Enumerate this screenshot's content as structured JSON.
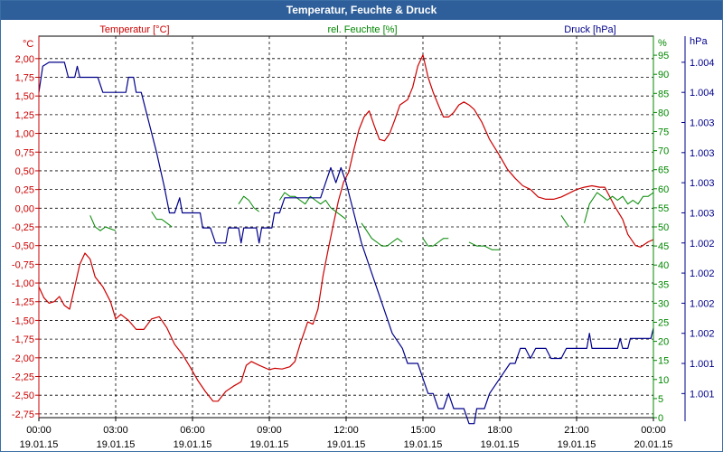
{
  "window": {
    "title": "Temperatur, Feuchte & Druck"
  },
  "chart_data": {
    "type": "line",
    "title": "Temperatur, Feuchte & Druck",
    "x_ticks": [
      {
        "time": "00:00",
        "date": "19.01.15"
      },
      {
        "time": "03:00",
        "date": "19.01.15"
      },
      {
        "time": "06:00",
        "date": "19.01.15"
      },
      {
        "time": "09:00",
        "date": "19.01.15"
      },
      {
        "time": "12:00",
        "date": "19.01.15"
      },
      {
        "time": "15:00",
        "date": "19.01.15"
      },
      {
        "time": "18:00",
        "date": "19.01.15"
      },
      {
        "time": "21:00",
        "date": "19.01.15"
      },
      {
        "time": "00:00",
        "date": "20.01.15"
      }
    ],
    "xlim": [
      0,
      24
    ],
    "axes": {
      "temperature": {
        "label": "Temperatur [°C]",
        "unit": "°C",
        "color": "#cc0000",
        "ylim": [
          -2.8,
          2.3
        ],
        "ticks": [
          2.0,
          1.75,
          1.5,
          1.25,
          1.0,
          0.75,
          0.5,
          0.25,
          0.0,
          -0.25,
          -0.5,
          -0.75,
          -1.0,
          -1.25,
          -1.5,
          -1.75,
          -2.0,
          -2.25,
          -2.5,
          -2.75
        ],
        "tick_labels": [
          "2,00",
          "1,75",
          "1,50",
          "1,25",
          "1,00",
          "0,75",
          "0,50",
          "0,25",
          "0,00",
          "-0,25",
          "-0,50",
          "-0,75",
          "-1,00",
          "-1,25",
          "-1,50",
          "-1,75",
          "-2,00",
          "-2,25",
          "-2,50",
          "-2,75"
        ]
      },
      "humidity": {
        "label": "rel. Feuchte [%]",
        "unit": "%",
        "color": "#008800",
        "ylim": [
          0,
          100
        ],
        "ticks": [
          95,
          90,
          85,
          80,
          75,
          70,
          65,
          60,
          55,
          50,
          45,
          40,
          35,
          30,
          25,
          20,
          15,
          10,
          5,
          0
        ],
        "tick_labels": [
          "95",
          "90",
          "85",
          "80",
          "75",
          "70",
          "65",
          "60",
          "55",
          "50",
          "45",
          "40",
          "35",
          "30",
          "25",
          "20",
          "15",
          "10",
          "5",
          "0"
        ]
      },
      "pressure": {
        "label": "Druck [hPa]",
        "unit": "hPa",
        "color": "#00008b",
        "ylim": [
          1000.5,
          1004.3
        ],
        "tick_values": [
          1004.04,
          1003.74,
          1003.44,
          1003.14,
          1002.84,
          1002.54,
          1002.24,
          1001.94,
          1001.64,
          1001.34,
          1001.04,
          1000.74
        ],
        "tick_labels": [
          "1.004",
          "1.004",
          "1.003",
          "1.003",
          "1.003",
          "1.003",
          "1.002",
          "1.002",
          "1.002",
          "1.002",
          "1.001",
          "1.001"
        ]
      }
    },
    "series": [
      {
        "name": "Temperatur [°C]",
        "axis": "temperature",
        "color": "#cc0000",
        "points": [
          [
            0,
            -1.05
          ],
          [
            0.2,
            -1.2
          ],
          [
            0.4,
            -1.27
          ],
          [
            0.6,
            -1.25
          ],
          [
            0.8,
            -1.18
          ],
          [
            1.0,
            -1.3
          ],
          [
            1.2,
            -1.35
          ],
          [
            1.4,
            -1.05
          ],
          [
            1.6,
            -0.75
          ],
          [
            1.8,
            -0.6
          ],
          [
            2.0,
            -0.68
          ],
          [
            2.2,
            -0.92
          ],
          [
            2.5,
            -1.05
          ],
          [
            2.8,
            -1.25
          ],
          [
            3.0,
            -1.48
          ],
          [
            3.2,
            -1.42
          ],
          [
            3.5,
            -1.5
          ],
          [
            3.8,
            -1.62
          ],
          [
            4.1,
            -1.62
          ],
          [
            4.4,
            -1.48
          ],
          [
            4.7,
            -1.45
          ],
          [
            5.0,
            -1.6
          ],
          [
            5.3,
            -1.82
          ],
          [
            5.6,
            -1.95
          ],
          [
            5.9,
            -2.12
          ],
          [
            6.2,
            -2.3
          ],
          [
            6.5,
            -2.45
          ],
          [
            6.8,
            -2.58
          ],
          [
            7.0,
            -2.58
          ],
          [
            7.3,
            -2.45
          ],
          [
            7.6,
            -2.38
          ],
          [
            7.9,
            -2.32
          ],
          [
            8.1,
            -2.1
          ],
          [
            8.3,
            -2.05
          ],
          [
            8.6,
            -2.1
          ],
          [
            9.0,
            -2.16
          ],
          [
            9.2,
            -2.14
          ],
          [
            9.5,
            -2.15
          ],
          [
            9.8,
            -2.12
          ],
          [
            10.0,
            -2.05
          ],
          [
            10.2,
            -1.82
          ],
          [
            10.5,
            -1.52
          ],
          [
            10.7,
            -1.55
          ],
          [
            10.9,
            -1.35
          ],
          [
            11.1,
            -0.9
          ],
          [
            11.3,
            -0.55
          ],
          [
            11.5,
            -0.22
          ],
          [
            11.7,
            0.1
          ],
          [
            11.9,
            0.35
          ],
          [
            12.1,
            0.48
          ],
          [
            12.3,
            0.78
          ],
          [
            12.5,
            1.05
          ],
          [
            12.7,
            1.22
          ],
          [
            12.9,
            1.3
          ],
          [
            13.1,
            1.1
          ],
          [
            13.3,
            0.92
          ],
          [
            13.5,
            0.9
          ],
          [
            13.7,
            1.0
          ],
          [
            13.9,
            1.18
          ],
          [
            14.1,
            1.38
          ],
          [
            14.4,
            1.45
          ],
          [
            14.6,
            1.62
          ],
          [
            14.8,
            1.9
          ],
          [
            15.0,
            2.05
          ],
          [
            15.2,
            1.75
          ],
          [
            15.4,
            1.55
          ],
          [
            15.6,
            1.38
          ],
          [
            15.8,
            1.22
          ],
          [
            16.0,
            1.22
          ],
          [
            16.2,
            1.28
          ],
          [
            16.4,
            1.38
          ],
          [
            16.6,
            1.42
          ],
          [
            16.8,
            1.38
          ],
          [
            17.0,
            1.32
          ],
          [
            17.3,
            1.15
          ],
          [
            17.6,
            0.92
          ],
          [
            18.0,
            0.7
          ],
          [
            18.3,
            0.52
          ],
          [
            18.6,
            0.4
          ],
          [
            18.9,
            0.3
          ],
          [
            19.2,
            0.25
          ],
          [
            19.5,
            0.15
          ],
          [
            19.8,
            0.12
          ],
          [
            20.1,
            0.12
          ],
          [
            20.4,
            0.15
          ],
          [
            20.7,
            0.2
          ],
          [
            21.0,
            0.25
          ],
          [
            21.3,
            0.28
          ],
          [
            21.6,
            0.3
          ],
          [
            21.9,
            0.28
          ],
          [
            22.1,
            0.28
          ],
          [
            22.3,
            0.15
          ],
          [
            22.5,
            0.02
          ],
          [
            22.8,
            -0.15
          ],
          [
            23.0,
            -0.35
          ],
          [
            23.3,
            -0.5
          ],
          [
            23.5,
            -0.52
          ],
          [
            23.8,
            -0.45
          ],
          [
            24.0,
            -0.42
          ]
        ]
      },
      {
        "name": "rel. Feuchte [%]",
        "axis": "humidity",
        "color": "#008800",
        "segments": [
          [
            [
              2.0,
              53
            ],
            [
              2.2,
              50
            ],
            [
              2.4,
              49
            ],
            [
              2.6,
              50
            ],
            [
              2.8,
              49.5
            ],
            [
              3.0,
              49
            ]
          ],
          [
            [
              4.4,
              54
            ],
            [
              4.6,
              52
            ],
            [
              4.8,
              52
            ],
            [
              5.0,
              51
            ],
            [
              5.2,
              50
            ]
          ],
          [
            [
              7.8,
              56
            ],
            [
              8.0,
              58
            ],
            [
              8.2,
              57
            ],
            [
              8.4,
              55
            ],
            [
              8.6,
              54
            ]
          ],
          [
            [
              9.4,
              57
            ],
            [
              9.6,
              59
            ],
            [
              9.8,
              58
            ],
            [
              10.0,
              58
            ],
            [
              10.2,
              57
            ],
            [
              10.4,
              56
            ],
            [
              10.6,
              58
            ],
            [
              10.8,
              57
            ],
            [
              11.0,
              56
            ],
            [
              11.2,
              57
            ],
            [
              11.4,
              55
            ],
            [
              11.6,
              54
            ],
            [
              11.8,
              53
            ],
            [
              12.0,
              52
            ]
          ],
          [
            [
              12.6,
              51
            ],
            [
              12.8,
              49
            ],
            [
              13.0,
              47
            ],
            [
              13.2,
              46
            ],
            [
              13.4,
              45
            ],
            [
              13.6,
              45
            ],
            [
              13.8,
              46
            ],
            [
              14.0,
              47
            ],
            [
              14.2,
              46
            ]
          ],
          [
            [
              15.0,
              47
            ],
            [
              15.2,
              45
            ],
            [
              15.4,
              45
            ],
            [
              15.6,
              46
            ],
            [
              15.8,
              47
            ],
            [
              16.0,
              47
            ]
          ],
          [
            [
              16.8,
              46
            ],
            [
              17.1,
              45
            ],
            [
              17.4,
              45
            ],
            [
              17.7,
              44
            ],
            [
              18.0,
              44
            ]
          ],
          [
            [
              20.4,
              53
            ],
            [
              20.7,
              50
            ]
          ],
          [
            [
              21.3,
              51
            ],
            [
              21.5,
              56
            ],
            [
              21.8,
              59
            ],
            [
              22.0,
              58
            ],
            [
              22.2,
              57
            ],
            [
              22.4,
              58
            ],
            [
              22.6,
              57
            ],
            [
              22.8,
              58
            ],
            [
              23.0,
              56
            ],
            [
              23.2,
              57
            ],
            [
              23.4,
              56
            ],
            [
              23.6,
              58
            ],
            [
              23.8,
              58
            ],
            [
              24.0,
              59
            ]
          ]
        ]
      },
      {
        "name": "Druck [hPa]",
        "axis": "pressure",
        "color": "#00008b",
        "points": [
          [
            0.0,
            1003.74
          ],
          [
            0.15,
            1004.0
          ],
          [
            0.4,
            1004.04
          ],
          [
            1.0,
            1004.04
          ],
          [
            1.15,
            1003.89
          ],
          [
            1.4,
            1003.89
          ],
          [
            1.5,
            1004.0
          ],
          [
            1.6,
            1003.89
          ],
          [
            2.3,
            1003.89
          ],
          [
            2.5,
            1003.74
          ],
          [
            3.4,
            1003.74
          ],
          [
            3.5,
            1003.89
          ],
          [
            3.7,
            1003.89
          ],
          [
            3.8,
            1003.74
          ],
          [
            4.0,
            1003.74
          ],
          [
            4.3,
            1003.44
          ],
          [
            4.6,
            1003.14
          ],
          [
            4.9,
            1002.8
          ],
          [
            5.1,
            1002.54
          ],
          [
            5.3,
            1002.54
          ],
          [
            5.5,
            1002.69
          ],
          [
            5.6,
            1002.54
          ],
          [
            6.3,
            1002.54
          ],
          [
            6.4,
            1002.39
          ],
          [
            6.7,
            1002.39
          ],
          [
            6.9,
            1002.24
          ],
          [
            7.3,
            1002.24
          ],
          [
            7.4,
            1002.39
          ],
          [
            7.8,
            1002.39
          ],
          [
            7.9,
            1002.24
          ],
          [
            8.0,
            1002.39
          ],
          [
            8.5,
            1002.39
          ],
          [
            8.6,
            1002.24
          ],
          [
            8.7,
            1002.39
          ],
          [
            9.1,
            1002.39
          ],
          [
            9.2,
            1002.54
          ],
          [
            9.4,
            1002.54
          ],
          [
            9.6,
            1002.69
          ],
          [
            10.0,
            1002.69
          ],
          [
            10.1,
            1002.69
          ],
          [
            11.0,
            1002.69
          ],
          [
            11.2,
            1002.84
          ],
          [
            11.4,
            1002.99
          ],
          [
            11.6,
            1002.84
          ],
          [
            11.8,
            1002.99
          ],
          [
            12.0,
            1002.84
          ],
          [
            12.3,
            1002.54
          ],
          [
            12.6,
            1002.24
          ],
          [
            13.0,
            1001.94
          ],
          [
            13.4,
            1001.64
          ],
          [
            13.8,
            1001.34
          ],
          [
            14.2,
            1001.19
          ],
          [
            14.4,
            1001.04
          ],
          [
            14.8,
            1001.04
          ],
          [
            15.0,
            1000.89
          ],
          [
            15.2,
            1000.74
          ],
          [
            15.4,
            1000.74
          ],
          [
            15.6,
            1000.59
          ],
          [
            15.8,
            1000.59
          ],
          [
            16.0,
            1000.74
          ],
          [
            16.2,
            1000.59
          ],
          [
            16.6,
            1000.59
          ],
          [
            16.8,
            1000.44
          ],
          [
            17.0,
            1000.44
          ],
          [
            17.1,
            1000.59
          ],
          [
            17.4,
            1000.59
          ],
          [
            17.6,
            1000.74
          ],
          [
            18.0,
            1000.89
          ],
          [
            18.4,
            1001.04
          ],
          [
            18.6,
            1001.04
          ],
          [
            18.8,
            1001.19
          ],
          [
            19.0,
            1001.19
          ],
          [
            19.2,
            1001.09
          ],
          [
            19.4,
            1001.19
          ],
          [
            19.8,
            1001.19
          ],
          [
            20.0,
            1001.09
          ],
          [
            20.4,
            1001.09
          ],
          [
            20.6,
            1001.19
          ],
          [
            21.4,
            1001.19
          ],
          [
            21.5,
            1001.34
          ],
          [
            21.6,
            1001.19
          ],
          [
            22.6,
            1001.19
          ],
          [
            22.7,
            1001.29
          ],
          [
            22.8,
            1001.19
          ],
          [
            23.0,
            1001.19
          ],
          [
            23.1,
            1001.29
          ],
          [
            23.4,
            1001.29
          ],
          [
            23.5,
            1001.29
          ],
          [
            23.9,
            1001.29
          ],
          [
            24.0,
            1001.39
          ]
        ]
      }
    ]
  }
}
